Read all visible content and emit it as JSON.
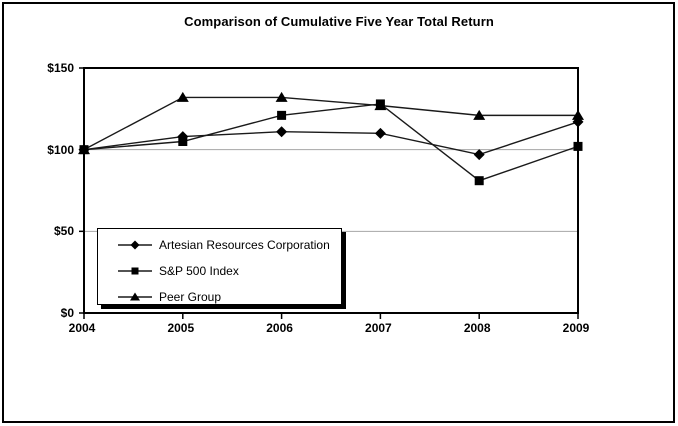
{
  "chart_data": {
    "type": "line",
    "title": "Comparison of Cumulative Five Year Total Return",
    "categories": [
      "2004",
      "2005",
      "2006",
      "2007",
      "2008",
      "2009"
    ],
    "series": [
      {
        "name": "Artesian Resources Corporation",
        "marker": "diamond",
        "values": [
          100,
          108,
          111,
          110,
          97,
          117
        ]
      },
      {
        "name": "S&P 500 Index",
        "marker": "square",
        "values": [
          100,
          105,
          121,
          128,
          81,
          102
        ]
      },
      {
        "name": "Peer Group",
        "marker": "triangle",
        "values": [
          100,
          132,
          132,
          127,
          121,
          121
        ]
      }
    ],
    "y_axis": {
      "tick_labels": [
        "$0",
        "$50",
        "$100",
        "$150"
      ],
      "tick_values": [
        0,
        50,
        100,
        150
      ],
      "range": [
        0,
        150
      ]
    },
    "gridline_values": [
      50,
      100
    ],
    "legend_position": "inside-bottom-left",
    "colors": {
      "series_line": "#1a1a1a",
      "marker_fill": "#000000",
      "gridline": "#a6a6a6",
      "axis": "#000000",
      "background": "#ffffff"
    }
  }
}
